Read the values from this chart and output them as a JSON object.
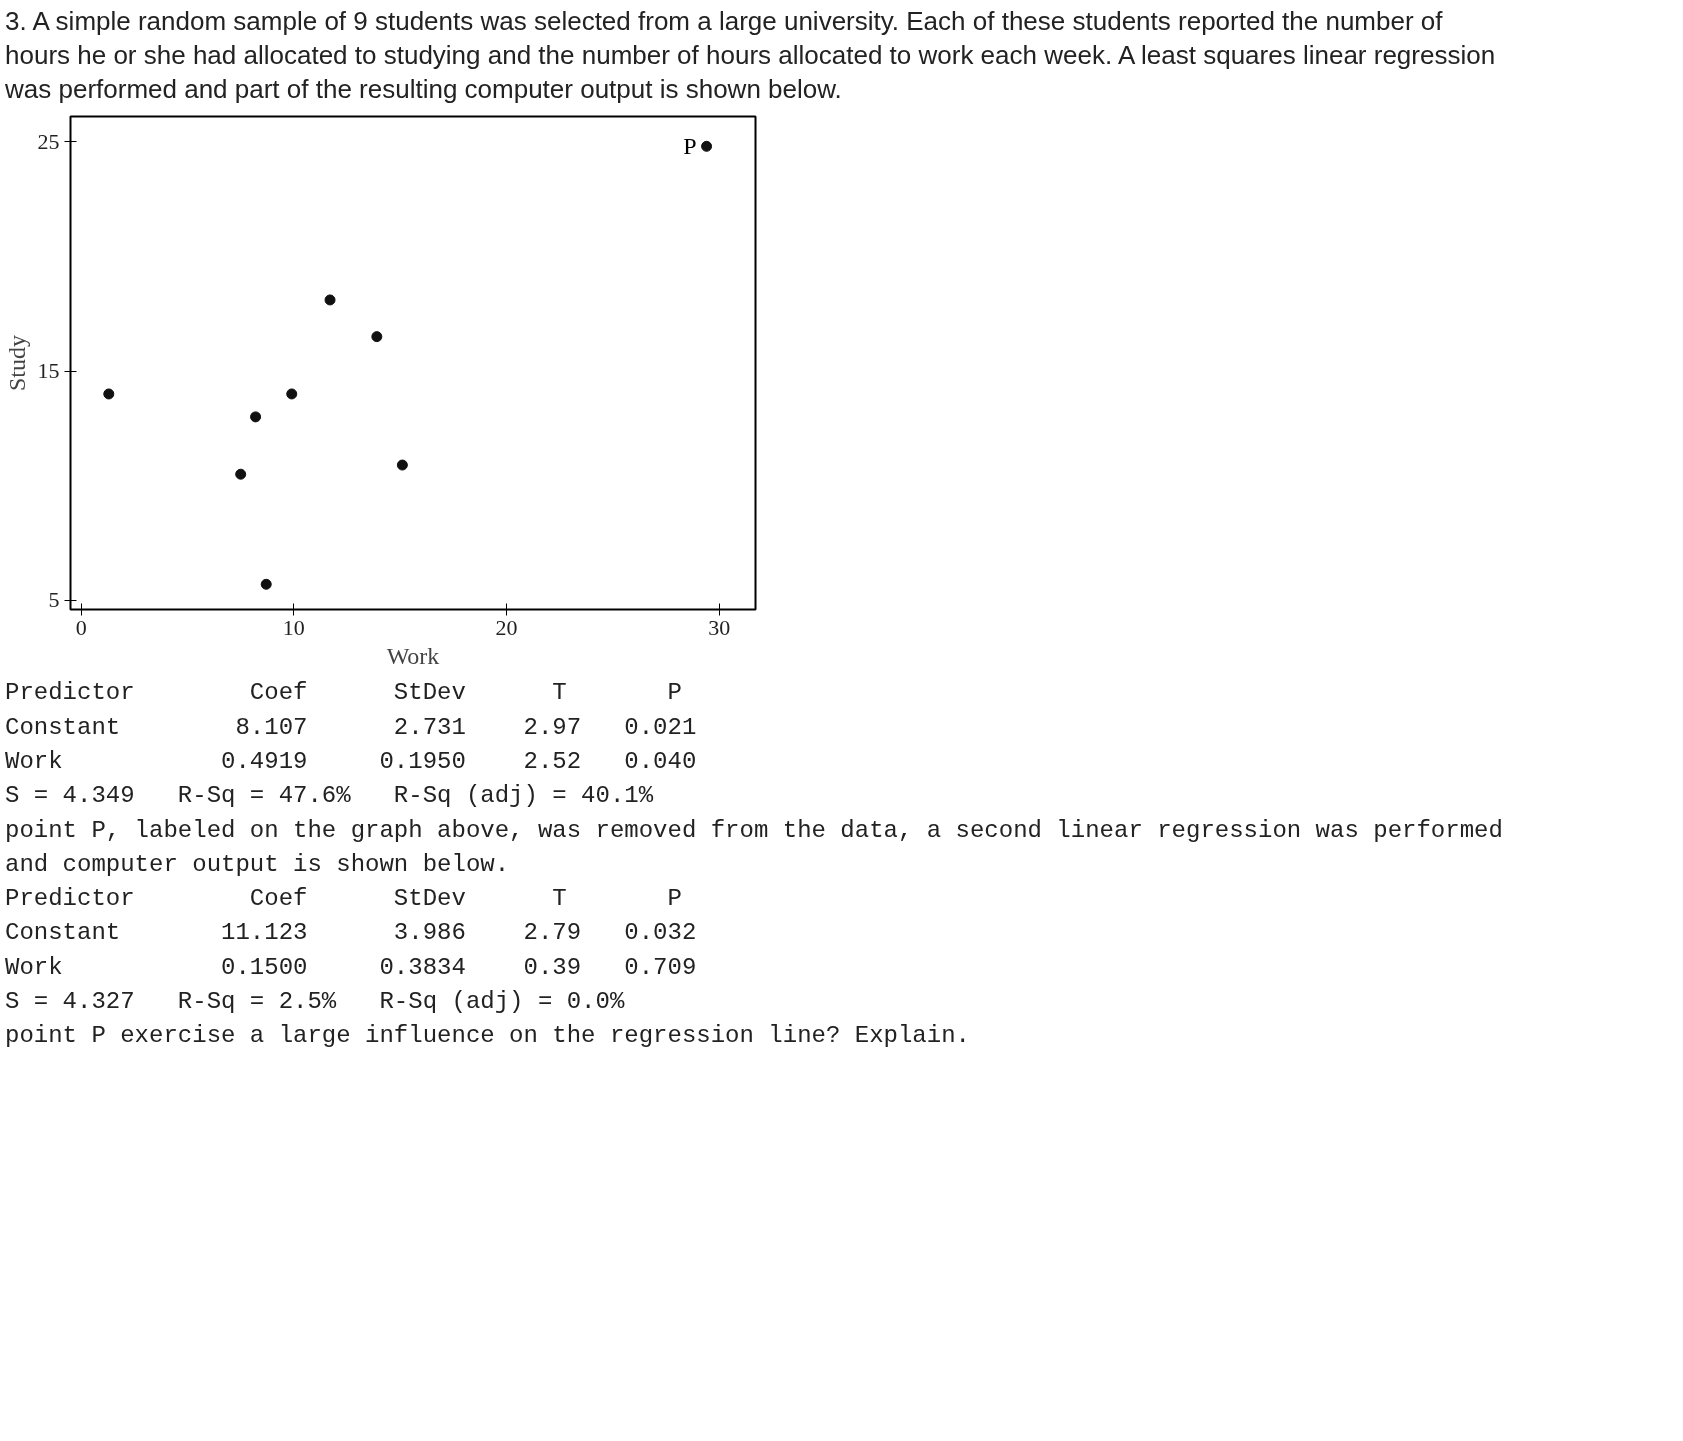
{
  "chart_data": {
    "type": "scatter",
    "title": "3. A simple random sample of 9 students was selected from a large university. Each of these students reported the number of hours he or she had allocated to studying and the number of hours allocated to work each week. A least squares linear regression was performed and part of the resulting computer output is shown below.",
    "xlabel": "Work",
    "ylabel": "Study",
    "x": [
      1.3,
      7.5,
      8.2,
      8.7,
      9.9,
      11.7,
      13.9,
      15.1,
      29.4
    ],
    "values": [
      14.0,
      10.5,
      13.0,
      5.7,
      14.0,
      18.1,
      16.5,
      10.9,
      24.8
    ],
    "color": "#111111",
    "marker": "circle",
    "grid": false,
    "xlim": [
      -0.5,
      31.7
    ],
    "ylim": [
      4.6,
      26.1
    ],
    "xticks": [
      0,
      10,
      20,
      30
    ],
    "yticks": [
      5,
      15,
      25
    ],
    "annotations": [
      {
        "text": "P",
        "x": 29.4,
        "y": 24.8
      },
      "Predictor        Coef      StDev      T       P",
      "Constant        8.107      2.731    2.97   0.021",
      "Work           0.4919     0.1950    2.52   0.040",
      "S = 4.349   R-Sq = 47.6%   R-Sq (adj) = 40.1%",
      "point P, labeled on the graph above, was removed from the data, a second linear regression was performed and computer output is shown below.",
      "Predictor        Coef      StDev      T       P",
      "Constant       11.123      3.986    2.79   0.032",
      "Work           0.1500     0.3834    0.39   0.709",
      "S = 4.327   R-Sq = 2.5%   R-Sq (adj) = 0.0%",
      "point P exercise a large influence on the regression line? Explain."
    ]
  }
}
